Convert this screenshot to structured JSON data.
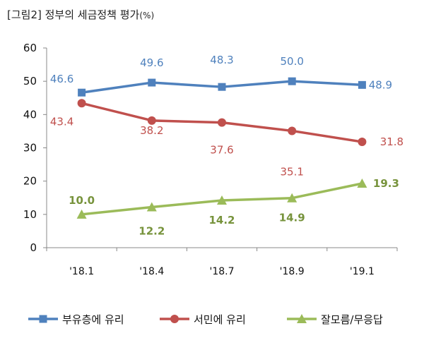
{
  "chart_data": {
    "type": "line",
    "title": "[그림2]  정부의 세금정책 평가",
    "title_unit": "(%)",
    "categories": [
      "'18.1",
      "'18.4",
      "'18.7",
      "'18.9",
      "'19.1"
    ],
    "ylim": [
      0,
      60
    ],
    "yticks": [
      0,
      10,
      20,
      30,
      40,
      50,
      60
    ],
    "xlabel": "",
    "ylabel": "",
    "grid": false,
    "legend_position": "bottom",
    "series": [
      {
        "name": "부유층에 유리",
        "values": [
          46.6,
          49.6,
          48.3,
          50.0,
          48.9
        ],
        "labels": [
          "46.6",
          "49.6",
          "48.3",
          "50.0",
          "48.9"
        ],
        "color": "#4f81bd",
        "label_color": "#4f81bd",
        "marker": "square"
      },
      {
        "name": "서민에 유리",
        "values": [
          43.4,
          38.2,
          37.6,
          35.1,
          31.8
        ],
        "labels": [
          "43.4",
          "38.2",
          "37.6",
          "35.1",
          "31.8"
        ],
        "color": "#c0504d",
        "label_color": "#c0504d",
        "marker": "circle"
      },
      {
        "name": "잘모름/무응답",
        "values": [
          10.0,
          12.2,
          14.2,
          14.9,
          19.3
        ],
        "labels": [
          "10.0",
          "12.2",
          "14.2",
          "14.9",
          "19.3"
        ],
        "color": "#9bbb59",
        "label_color": "#77933c",
        "marker": "triangle"
      }
    ]
  }
}
